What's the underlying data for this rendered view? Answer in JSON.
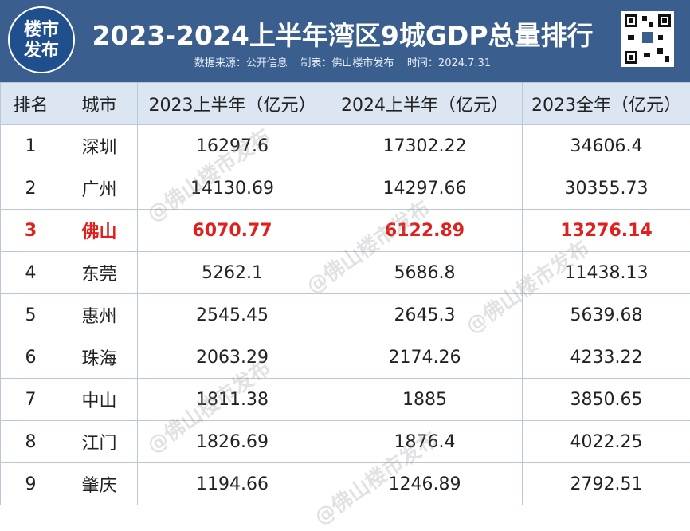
{
  "header": {
    "logo": [
      "楼市",
      "发布"
    ],
    "title": "2023-2024上半年湾区9城GDP总量排行",
    "subtitle": "数据来源：公开信息    制表：佛山楼市发布    时间：2024.7.31"
  },
  "watermark": "@佛山楼市发布",
  "table": {
    "columns": [
      "排名",
      "城市",
      "2023上半年（亿元）",
      "2024上半年（亿元）",
      "2023全年（亿元）"
    ],
    "rows": [
      [
        1,
        "深圳",
        16297.6,
        17302.22,
        34606.4
      ],
      [
        2,
        "广州",
        14130.69,
        14297.66,
        30355.73
      ],
      [
        3,
        "佛山",
        6070.77,
        6122.89,
        13276.14
      ],
      [
        4,
        "东莞",
        5262.1,
        5686.8,
        11438.13
      ],
      [
        5,
        "惠州",
        2545.45,
        2645.3,
        5639.68
      ],
      [
        6,
        "珠海",
        2063.29,
        2174.26,
        4233.22
      ],
      [
        7,
        "中山",
        1811.38,
        1885,
        3850.65
      ],
      [
        8,
        "江门",
        1826.69,
        1876.4,
        4022.25
      ],
      [
        9,
        "肇庆",
        1194.66,
        1246.89,
        2792.51
      ]
    ]
  }
}
